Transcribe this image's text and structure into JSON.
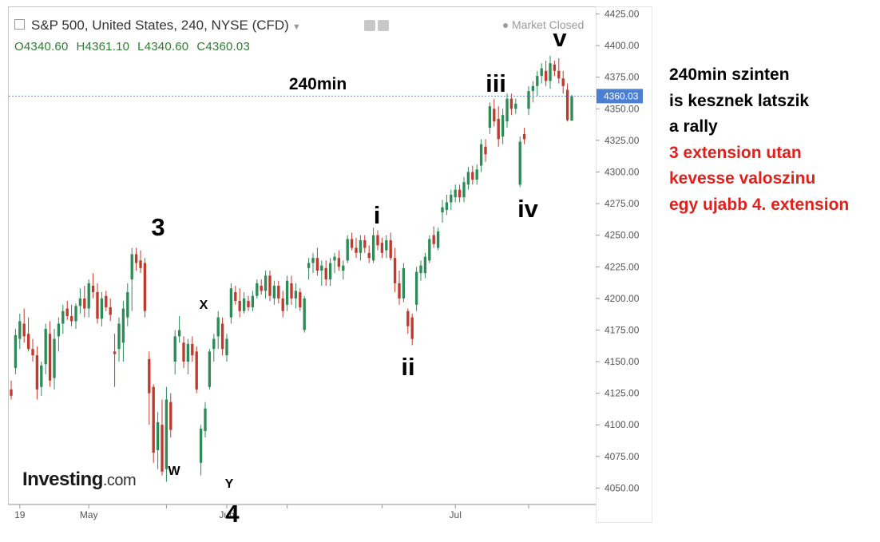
{
  "header": {
    "title": "S&P 500, United States, 240, NYSE (CFD)",
    "market_status": "Market Closed"
  },
  "ohlc": {
    "open": "O4340.60",
    "high": "H4361.10",
    "low": "L4340.60",
    "close": "C4360.03"
  },
  "brand": {
    "name": "Investing",
    "suffix": ".com"
  },
  "side_note": {
    "lines_black": [
      "240min szinten",
      "is kesznek latszik",
      "a rally"
    ],
    "lines_red": [
      "3 extension utan",
      "kevesse valoszinu",
      "egy ujabb 4. extension"
    ],
    "colors": {
      "black": "#000000",
      "red": "#e0201b"
    }
  },
  "chart_data": {
    "type": "candlestick",
    "timeframe_label": "240min",
    "ylim": [
      4037,
      4431
    ],
    "y_ticks": [
      "4425.00",
      "4400.00",
      "4375.00",
      "4350.00",
      "4325.00",
      "4300.00",
      "4275.00",
      "4250.00",
      "4225.00",
      "4200.00",
      "4175.00",
      "4150.00",
      "4125.00",
      "4100.00",
      "4075.00",
      "4050.00"
    ],
    "x_ticks": [
      "19",
      "May",
      "Jun",
      "Jul"
    ],
    "current_price": "4360.03",
    "current_price_value": 4360.03,
    "colors": {
      "up": "#2e8b57",
      "down": "#c0392b",
      "price_tag": "#4a7fd4",
      "price_line": "#6d8fd8"
    },
    "candles": [
      {
        "o": 4128,
        "h": 4135,
        "l": 4120,
        "c": 4123
      },
      {
        "o": 4145,
        "h": 4176,
        "l": 4140,
        "c": 4171
      },
      {
        "o": 4168,
        "h": 4188,
        "l": 4160,
        "c": 4182
      },
      {
        "o": 4180,
        "h": 4192,
        "l": 4165,
        "c": 4170
      },
      {
        "o": 4172,
        "h": 4185,
        "l": 4158,
        "c": 4160
      },
      {
        "o": 4160,
        "h": 4168,
        "l": 4150,
        "c": 4155
      },
      {
        "o": 4155,
        "h": 4162,
        "l": 4120,
        "c": 4128
      },
      {
        "o": 4130,
        "h": 4150,
        "l": 4123,
        "c": 4147
      },
      {
        "o": 4148,
        "h": 4180,
        "l": 4140,
        "c": 4176
      },
      {
        "o": 4172,
        "h": 4182,
        "l": 4130,
        "c": 4135
      },
      {
        "o": 4137,
        "h": 4176,
        "l": 4128,
        "c": 4168
      },
      {
        "o": 4170,
        "h": 4185,
        "l": 4158,
        "c": 4180
      },
      {
        "o": 4180,
        "h": 4195,
        "l": 4172,
        "c": 4190
      },
      {
        "o": 4192,
        "h": 4198,
        "l": 4183,
        "c": 4186
      },
      {
        "o": 4186,
        "h": 4195,
        "l": 4178,
        "c": 4182
      },
      {
        "o": 4182,
        "h": 4196,
        "l": 4176,
        "c": 4194
      },
      {
        "o": 4194,
        "h": 4208,
        "l": 4188,
        "c": 4200
      },
      {
        "o": 4200,
        "h": 4210,
        "l": 4185,
        "c": 4192
      },
      {
        "o": 4192,
        "h": 4215,
        "l": 4185,
        "c": 4212
      },
      {
        "o": 4210,
        "h": 4220,
        "l": 4200,
        "c": 4205
      },
      {
        "o": 4205,
        "h": 4212,
        "l": 4180,
        "c": 4184
      },
      {
        "o": 4184,
        "h": 4205,
        "l": 4178,
        "c": 4200
      },
      {
        "o": 4202,
        "h": 4206,
        "l": 4190,
        "c": 4193
      },
      {
        "o": 4193,
        "h": 4200,
        "l": 4182,
        "c": 4187
      },
      {
        "o": 4158,
        "h": 4172,
        "l": 4130,
        "c": 4156
      },
      {
        "o": 4160,
        "h": 4185,
        "l": 4150,
        "c": 4180
      },
      {
        "o": 4165,
        "h": 4198,
        "l": 4150,
        "c": 4192
      },
      {
        "o": 4185,
        "h": 4212,
        "l": 4178,
        "c": 4205
      },
      {
        "o": 4215,
        "h": 4240,
        "l": 4190,
        "c": 4235
      },
      {
        "o": 4235,
        "h": 4240,
        "l": 4222,
        "c": 4228
      },
      {
        "o": 4230,
        "h": 4238,
        "l": 4220,
        "c": 4224
      },
      {
        "o": 4228,
        "h": 4232,
        "l": 4185,
        "c": 4190
      },
      {
        "o": 4152,
        "h": 4158,
        "l": 4100,
        "c": 4125
      },
      {
        "o": 4130,
        "h": 4132,
        "l": 4070,
        "c": 4078
      },
      {
        "o": 4080,
        "h": 4110,
        "l": 4065,
        "c": 4102
      },
      {
        "o": 4100,
        "h": 4120,
        "l": 4060,
        "c": 4063
      },
      {
        "o": 4065,
        "h": 4130,
        "l": 4055,
        "c": 4120
      },
      {
        "o": 4118,
        "h": 4125,
        "l": 4090,
        "c": 4096
      },
      {
        "o": 4150,
        "h": 4175,
        "l": 4140,
        "c": 4170
      },
      {
        "o": 4170,
        "h": 4186,
        "l": 4165,
        "c": 4175
      },
      {
        "o": 4165,
        "h": 4170,
        "l": 4145,
        "c": 4150
      },
      {
        "o": 4150,
        "h": 4168,
        "l": 4140,
        "c": 4164
      },
      {
        "o": 4164,
        "h": 4170,
        "l": 4150,
        "c": 4155
      },
      {
        "o": 4158,
        "h": 4162,
        "l": 4125,
        "c": 4128
      },
      {
        "o": 4070,
        "h": 4100,
        "l": 4060,
        "c": 4097
      },
      {
        "o": 4095,
        "h": 4118,
        "l": 4090,
        "c": 4113
      },
      {
        "o": 4130,
        "h": 4160,
        "l": 4128,
        "c": 4158
      },
      {
        "o": 4160,
        "h": 4172,
        "l": 4150,
        "c": 4168
      },
      {
        "o": 4170,
        "h": 4190,
        "l": 4160,
        "c": 4185
      },
      {
        "o": 4180,
        "h": 4185,
        "l": 4155,
        "c": 4160
      },
      {
        "o": 4155,
        "h": 4172,
        "l": 4150,
        "c": 4168
      },
      {
        "o": 4185,
        "h": 4212,
        "l": 4180,
        "c": 4208
      },
      {
        "o": 4205,
        "h": 4210,
        "l": 4195,
        "c": 4198
      },
      {
        "o": 4198,
        "h": 4208,
        "l": 4185,
        "c": 4190
      },
      {
        "o": 4190,
        "h": 4205,
        "l": 4188,
        "c": 4200
      },
      {
        "o": 4198,
        "h": 4202,
        "l": 4190,
        "c": 4193
      },
      {
        "o": 4193,
        "h": 4206,
        "l": 4190,
        "c": 4202
      },
      {
        "o": 4202,
        "h": 4215,
        "l": 4200,
        "c": 4212
      },
      {
        "o": 4210,
        "h": 4215,
        "l": 4203,
        "c": 4206
      },
      {
        "o": 4206,
        "h": 4222,
        "l": 4200,
        "c": 4218
      },
      {
        "o": 4218,
        "h": 4222,
        "l": 4198,
        "c": 4202
      },
      {
        "o": 4200,
        "h": 4214,
        "l": 4195,
        "c": 4210
      },
      {
        "o": 4210,
        "h": 4214,
        "l": 4196,
        "c": 4200
      },
      {
        "o": 4200,
        "h": 4206,
        "l": 4185,
        "c": 4190
      },
      {
        "o": 4195,
        "h": 4218,
        "l": 4190,
        "c": 4214
      },
      {
        "o": 4212,
        "h": 4218,
        "l": 4195,
        "c": 4200
      },
      {
        "o": 4200,
        "h": 4212,
        "l": 4192,
        "c": 4206
      },
      {
        "o": 4205,
        "h": 4208,
        "l": 4190,
        "c": 4193
      },
      {
        "o": 4175,
        "h": 4202,
        "l": 4173,
        "c": 4200
      },
      {
        "o": 4224,
        "h": 4232,
        "l": 4215,
        "c": 4228
      },
      {
        "o": 4228,
        "h": 4236,
        "l": 4220,
        "c": 4232
      },
      {
        "o": 4232,
        "h": 4240,
        "l": 4218,
        "c": 4222
      },
      {
        "o": 4222,
        "h": 4230,
        "l": 4210,
        "c": 4226
      },
      {
        "o": 4224,
        "h": 4230,
        "l": 4210,
        "c": 4215
      },
      {
        "o": 4215,
        "h": 4232,
        "l": 4210,
        "c": 4228
      },
      {
        "o": 4230,
        "h": 4236,
        "l": 4220,
        "c": 4233
      },
      {
        "o": 4232,
        "h": 4238,
        "l": 4222,
        "c": 4225
      },
      {
        "o": 4222,
        "h": 4230,
        "l": 4215,
        "c": 4226
      },
      {
        "o": 4230,
        "h": 4250,
        "l": 4228,
        "c": 4247
      },
      {
        "o": 4247,
        "h": 4252,
        "l": 4238,
        "c": 4240
      },
      {
        "o": 4240,
        "h": 4248,
        "l": 4232,
        "c": 4236
      },
      {
        "o": 4236,
        "h": 4250,
        "l": 4230,
        "c": 4246
      },
      {
        "o": 4246,
        "h": 4250,
        "l": 4236,
        "c": 4240
      },
      {
        "o": 4236,
        "h": 4242,
        "l": 4228,
        "c": 4232
      },
      {
        "o": 4230,
        "h": 4256,
        "l": 4228,
        "c": 4250
      },
      {
        "o": 4250,
        "h": 4254,
        "l": 4238,
        "c": 4242
      },
      {
        "o": 4244,
        "h": 4248,
        "l": 4232,
        "c": 4236
      },
      {
        "o": 4238,
        "h": 4250,
        "l": 4232,
        "c": 4246
      },
      {
        "o": 4246,
        "h": 4252,
        "l": 4230,
        "c": 4232
      },
      {
        "o": 4232,
        "h": 4240,
        "l": 4205,
        "c": 4212
      },
      {
        "o": 4212,
        "h": 4222,
        "l": 4195,
        "c": 4200
      },
      {
        "o": 4200,
        "h": 4228,
        "l": 4197,
        "c": 4224
      },
      {
        "o": 4190,
        "h": 4192,
        "l": 4172,
        "c": 4178
      },
      {
        "o": 4185,
        "h": 4188,
        "l": 4163,
        "c": 4168
      },
      {
        "o": 4195,
        "h": 4225,
        "l": 4190,
        "c": 4221
      },
      {
        "o": 4220,
        "h": 4230,
        "l": 4214,
        "c": 4226
      },
      {
        "o": 4220,
        "h": 4236,
        "l": 4216,
        "c": 4233
      },
      {
        "o": 4230,
        "h": 4250,
        "l": 4228,
        "c": 4247
      },
      {
        "o": 4250,
        "h": 4257,
        "l": 4240,
        "c": 4243
      },
      {
        "o": 4240,
        "h": 4256,
        "l": 4238,
        "c": 4253
      },
      {
        "o": 4268,
        "h": 4278,
        "l": 4260,
        "c": 4272
      },
      {
        "o": 4270,
        "h": 4282,
        "l": 4266,
        "c": 4276
      },
      {
        "o": 4276,
        "h": 4286,
        "l": 4270,
        "c": 4282
      },
      {
        "o": 4280,
        "h": 4290,
        "l": 4276,
        "c": 4286
      },
      {
        "o": 4286,
        "h": 4290,
        "l": 4276,
        "c": 4280
      },
      {
        "o": 4280,
        "h": 4296,
        "l": 4276,
        "c": 4292
      },
      {
        "o": 4290,
        "h": 4304,
        "l": 4286,
        "c": 4300
      },
      {
        "o": 4300,
        "h": 4305,
        "l": 4290,
        "c": 4294
      },
      {
        "o": 4294,
        "h": 4306,
        "l": 4290,
        "c": 4302
      },
      {
        "o": 4305,
        "h": 4326,
        "l": 4300,
        "c": 4322
      },
      {
        "o": 4320,
        "h": 4326,
        "l": 4308,
        "c": 4314
      },
      {
        "o": 4335,
        "h": 4355,
        "l": 4330,
        "c": 4352
      },
      {
        "o": 4350,
        "h": 4358,
        "l": 4336,
        "c": 4340
      },
      {
        "o": 4342,
        "h": 4352,
        "l": 4320,
        "c": 4326
      },
      {
        "o": 4328,
        "h": 4350,
        "l": 4322,
        "c": 4345
      },
      {
        "o": 4340,
        "h": 4362,
        "l": 4335,
        "c": 4358
      },
      {
        "o": 4358,
        "h": 4362,
        "l": 4345,
        "c": 4350
      },
      {
        "o": 4350,
        "h": 4358,
        "l": 4346,
        "c": 4354
      },
      {
        "o": 4290,
        "h": 4328,
        "l": 4288,
        "c": 4324
      },
      {
        "o": 4330,
        "h": 4335,
        "l": 4322,
        "c": 4326
      },
      {
        "o": 4350,
        "h": 4368,
        "l": 4345,
        "c": 4364
      },
      {
        "o": 4364,
        "h": 4372,
        "l": 4355,
        "c": 4368
      },
      {
        "o": 4368,
        "h": 4380,
        "l": 4360,
        "c": 4376
      },
      {
        "o": 4376,
        "h": 4386,
        "l": 4370,
        "c": 4382
      },
      {
        "o": 4380,
        "h": 4388,
        "l": 4368,
        "c": 4372
      },
      {
        "o": 4372,
        "h": 4392,
        "l": 4366,
        "c": 4386
      },
      {
        "o": 4385,
        "h": 4388,
        "l": 4376,
        "c": 4380
      },
      {
        "o": 4380,
        "h": 4390,
        "l": 4370,
        "c": 4374
      },
      {
        "o": 4374,
        "h": 4380,
        "l": 4362,
        "c": 4368
      },
      {
        "o": 4365,
        "h": 4370,
        "l": 4340,
        "c": 4341
      },
      {
        "o": 4340.6,
        "h": 4361.1,
        "l": 4340.6,
        "c": 4360.03
      }
    ],
    "wave_labels": [
      {
        "text": "3",
        "time": "May"
      },
      {
        "text": "W",
        "time": "May"
      },
      {
        "text": "X",
        "time": "May"
      },
      {
        "text": "Y",
        "time": "May"
      },
      {
        "text": "4",
        "time": "May"
      },
      {
        "text": "240min",
        "time": "Jun"
      },
      {
        "text": "i",
        "time": "Jun"
      },
      {
        "text": "ii",
        "time": "Jun"
      },
      {
        "text": "iii",
        "time": "Jul"
      },
      {
        "text": "iv",
        "time": "Jul"
      },
      {
        "text": "v",
        "time": "Jul"
      }
    ]
  }
}
